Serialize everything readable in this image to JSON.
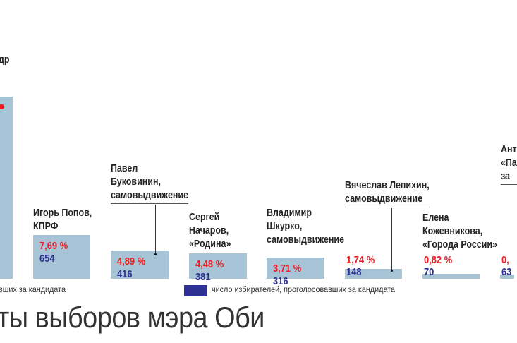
{
  "chart_data": {
    "type": "bar",
    "title": "ты выборов мэра Оби",
    "legend": [
      {
        "label": "вших за кандидата",
        "color": "#a6c4d5"
      },
      {
        "label": "число избирателей, проголосовавших за кандидата",
        "color": "#2e3192"
      }
    ],
    "candidates": [
      {
        "name": "др",
        "percent": "",
        "votes": null
      },
      {
        "name": "Игорь Попов,\nКПРФ",
        "percent": "7,69 %",
        "votes": 654
      },
      {
        "name": "Павел\nБуковинин,\nсамовыдвижение",
        "percent": "4,89 %",
        "votes": 416
      },
      {
        "name": "Сергей\nНачаров,\n«Родина»",
        "percent": "4,48 %",
        "votes": 381
      },
      {
        "name": "Владимир\nШкурко,\nсамовыдвижение",
        "percent": "3,71 %",
        "votes": 316
      },
      {
        "name": "Вячеслав Лепихин,\nсамовыдвижение",
        "percent": "1,74 %",
        "votes": 148
      },
      {
        "name": "Елена\nКожевникова,\n«Города России»",
        "percent": "0,82 %",
        "votes": 70
      },
      {
        "name": "Ант\n«Па\nза",
        "percent": "0,",
        "votes": 63
      }
    ],
    "colors": {
      "bar": "#a6c4d5",
      "percent": "#ee1c25",
      "votes": "#2e3192"
    }
  },
  "labels": {
    "c0": "др",
    "c1": [
      "Игорь Попов,",
      "КПРФ"
    ],
    "c2": [
      "Павел",
      "Буковинин,",
      "самовыдвижение"
    ],
    "c3": [
      "Сергей",
      "Начаров,",
      "«Родина»"
    ],
    "c4": [
      "Владимир",
      "Шкурко,",
      "самовыдвижение"
    ],
    "c5": [
      "Вячеслав Лепихин,",
      "самовыдвижение"
    ],
    "c6": [
      "Елена",
      "Кожевникова,",
      "«Города России»"
    ],
    "c7": [
      "Ант",
      "«Па",
      "за"
    ],
    "v7": "63"
  }
}
